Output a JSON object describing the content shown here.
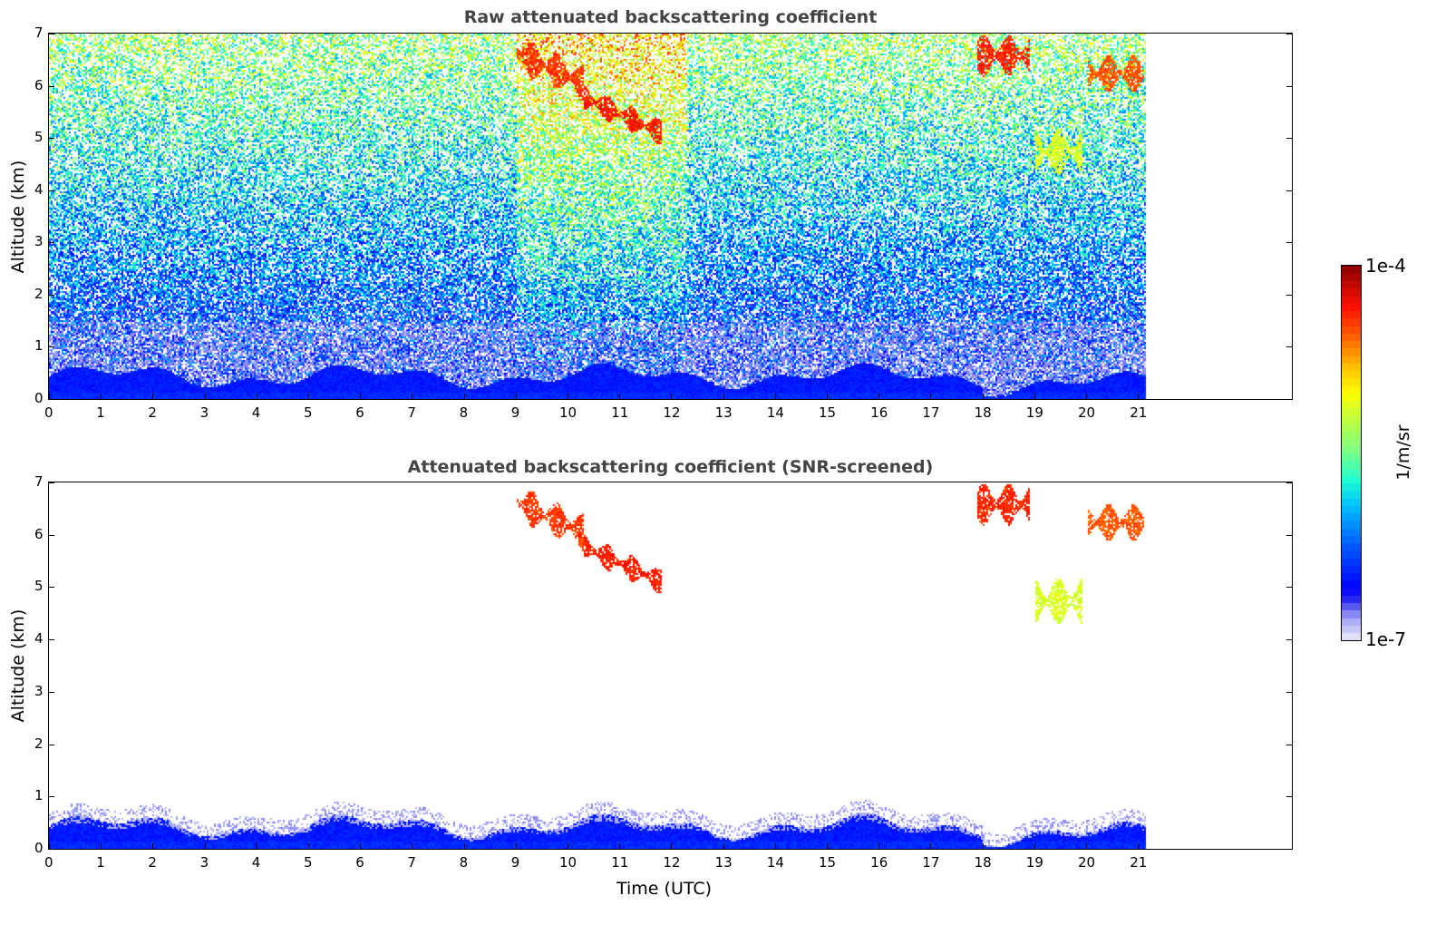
{
  "chart_data": [
    {
      "type": "heatmap",
      "title": "Raw attenuated backscattering coefficient",
      "xlabel": "",
      "ylabel": "Altitude (km)",
      "xlim": [
        0,
        24
      ],
      "ylim": [
        0,
        7
      ],
      "xticks": [
        "0",
        "1",
        "2",
        "3",
        "4",
        "5",
        "6",
        "7",
        "8",
        "9",
        "10",
        "11",
        "12",
        "13",
        "14",
        "15",
        "16",
        "17",
        "18",
        "19",
        "20",
        "21"
      ],
      "yticks": [
        "0",
        "1",
        "2",
        "3",
        "4",
        "5",
        "6",
        "7"
      ],
      "data_time_range": [
        0,
        21.15
      ],
      "boundary_layer_top_km": 0.5,
      "features": [
        {
          "name": "cirrus-a",
          "t": [
            9.0,
            10.3
          ],
          "alt": [
            6.0,
            6.7
          ],
          "level": 0.85
        },
        {
          "name": "cirrus-b",
          "t": [
            10.3,
            11.8
          ],
          "alt": [
            5.2,
            5.7
          ],
          "level": 0.88
        },
        {
          "name": "cirrus-c",
          "t": [
            17.9,
            18.9
          ],
          "alt": [
            6.2,
            7.0
          ],
          "level": 0.87
        },
        {
          "name": "virga",
          "t": [
            19.0,
            19.9
          ],
          "alt": [
            4.3,
            5.2
          ],
          "level": 0.62
        },
        {
          "name": "cirrus-d",
          "t": [
            20.0,
            21.1
          ],
          "alt": [
            5.9,
            6.6
          ],
          "level": 0.82
        }
      ]
    },
    {
      "type": "heatmap",
      "title": "Attenuated backscattering coefficient (SNR-screened)",
      "xlabel": "Time (UTC)",
      "ylabel": "Altitude (km)",
      "xlim": [
        0,
        24
      ],
      "ylim": [
        0,
        7
      ],
      "xticks": [
        "0",
        "1",
        "2",
        "3",
        "4",
        "5",
        "6",
        "7",
        "8",
        "9",
        "10",
        "11",
        "12",
        "13",
        "14",
        "15",
        "16",
        "17",
        "18",
        "19",
        "20",
        "21"
      ],
      "yticks": [
        "0",
        "1",
        "2",
        "3",
        "4",
        "5",
        "6",
        "7"
      ],
      "data_time_range": [
        0,
        21.15
      ]
    }
  ],
  "colorbar": {
    "max_label": "1e-4",
    "min_label": "1e-7",
    "label": "1/m/sr",
    "scale": "log",
    "range": [
      1e-07,
      0.0001
    ]
  }
}
